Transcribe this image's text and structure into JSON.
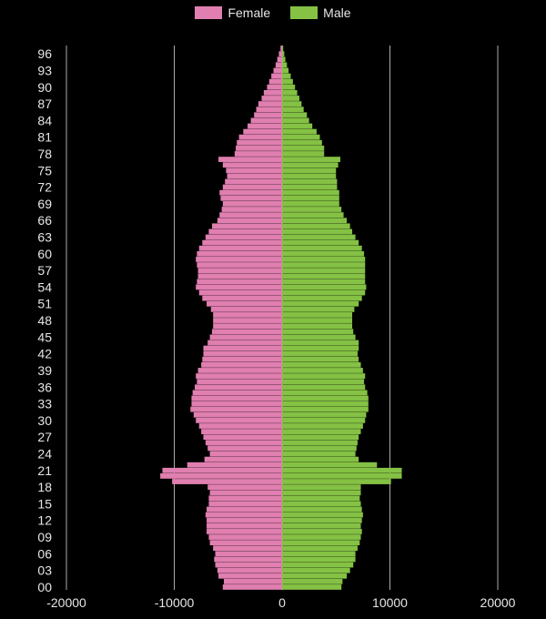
{
  "legend": {
    "female_label": "Female",
    "male_label": "Male"
  },
  "colors": {
    "background": "#000000",
    "female": "#e07fb0",
    "male": "#84c144",
    "grid": "#d9d9d9",
    "text": "#e6e6e6"
  },
  "chart_data": {
    "type": "bar",
    "orientation": "horizontal",
    "subtype": "population-pyramid",
    "title": "",
    "xlabel": "",
    "ylabel": "",
    "xlim": [
      -20000,
      20000
    ],
    "x_ticks": [
      -20000,
      -10000,
      0,
      10000,
      20000
    ],
    "x_tick_labels": [
      "-20000",
      "-10000",
      "0",
      "10000",
      "20000"
    ],
    "y_tick_labels": [
      "00",
      "03",
      "06",
      "09",
      "12",
      "15",
      "18",
      "21",
      "24",
      "27",
      "30",
      "33",
      "36",
      "39",
      "42",
      "45",
      "48",
      "51",
      "54",
      "57",
      "60",
      "63",
      "66",
      "69",
      "72",
      "75",
      "78",
      "81",
      "84",
      "87",
      "90",
      "93",
      "96"
    ],
    "legend_position": "top-center",
    "grid": "vertical",
    "ages": [
      0,
      1,
      2,
      3,
      4,
      5,
      6,
      7,
      8,
      9,
      10,
      11,
      12,
      13,
      14,
      15,
      16,
      17,
      18,
      19,
      20,
      21,
      22,
      23,
      24,
      25,
      26,
      27,
      28,
      29,
      30,
      31,
      32,
      33,
      34,
      35,
      36,
      37,
      38,
      39,
      40,
      41,
      42,
      43,
      44,
      45,
      46,
      47,
      48,
      49,
      50,
      51,
      52,
      53,
      54,
      55,
      56,
      57,
      58,
      59,
      60,
      61,
      62,
      63,
      64,
      65,
      66,
      67,
      68,
      69,
      70,
      71,
      72,
      73,
      74,
      75,
      76,
      77,
      78,
      79,
      80,
      81,
      82,
      83,
      84,
      85,
      86,
      87,
      88,
      89,
      90,
      91,
      92,
      93,
      94,
      95,
      96,
      97
    ],
    "series": [
      {
        "name": "Female",
        "values": [
          5500,
          5400,
          5900,
          6000,
          6200,
          6300,
          6200,
          6400,
          6700,
          6800,
          7000,
          7000,
          7000,
          7100,
          7000,
          6800,
          6800,
          6700,
          6900,
          10200,
          11300,
          11100,
          8800,
          7200,
          6700,
          6900,
          7100,
          7300,
          7500,
          7700,
          8000,
          8200,
          8500,
          8400,
          8400,
          8300,
          8100,
          7900,
          8000,
          7800,
          7500,
          7400,
          7300,
          7300,
          6900,
          6700,
          6500,
          6400,
          6400,
          6400,
          6600,
          7000,
          7400,
          7700,
          8000,
          7900,
          7800,
          7800,
          7900,
          8000,
          7900,
          7700,
          7400,
          7100,
          6800,
          6500,
          6000,
          5800,
          5600,
          5500,
          5700,
          5800,
          5500,
          5300,
          5100,
          5200,
          5500,
          5900,
          4400,
          4300,
          4200,
          4000,
          3600,
          3200,
          2900,
          2600,
          2400,
          2200,
          1900,
          1700,
          1400,
          1200,
          1000,
          800,
          600,
          450,
          300,
          150
        ]
      },
      {
        "name": "Male",
        "values": [
          5500,
          5600,
          6000,
          6300,
          6600,
          6800,
          6800,
          7000,
          7200,
          7300,
          7400,
          7300,
          7400,
          7500,
          7400,
          7300,
          7200,
          7300,
          7300,
          10100,
          11100,
          11100,
          8800,
          7100,
          6800,
          6900,
          7000,
          7100,
          7300,
          7500,
          7700,
          7800,
          8000,
          8000,
          8000,
          7900,
          7700,
          7600,
          7700,
          7500,
          7300,
          7100,
          7000,
          7100,
          7100,
          6800,
          6600,
          6500,
          6500,
          6500,
          6700,
          7100,
          7400,
          7700,
          7800,
          7700,
          7700,
          7700,
          7700,
          7700,
          7600,
          7400,
          7100,
          6800,
          6500,
          6300,
          6000,
          5700,
          5500,
          5300,
          5300,
          5300,
          5100,
          5100,
          5000,
          5000,
          5200,
          5400,
          3900,
          3900,
          3700,
          3500,
          3200,
          2800,
          2500,
          2300,
          2000,
          1800,
          1600,
          1400,
          1200,
          1000,
          800,
          600,
          450,
          300,
          200,
          100
        ]
      }
    ]
  }
}
